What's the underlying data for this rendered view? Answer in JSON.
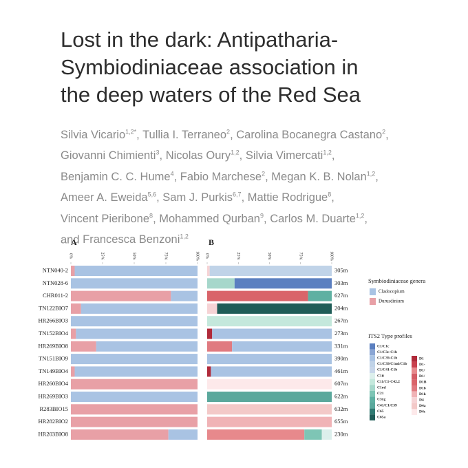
{
  "title": [
    "Lost in the dark: Antipatharia-",
    "Symbiodiniaceae association in",
    "the deep waters of the Red Sea"
  ],
  "authors": [
    {
      "name": "Silvia Vicario",
      "affiliation": "1,2*"
    },
    {
      "name": "Tullia I. Terraneo",
      "affiliation": "2"
    },
    {
      "name": "Carolina Bocanegra Castano",
      "affiliation": "2"
    },
    {
      "name": "Giovanni Chimienti",
      "affiliation": "3"
    },
    {
      "name": "Nicolas Oury",
      "affiliation": "1,2"
    },
    {
      "name": "Silvia Vimercati",
      "affiliation": "1,2"
    },
    {
      "name": "Benjamin C. C. Hume",
      "affiliation": "4"
    },
    {
      "name": "Fabio Marchese",
      "affiliation": "2"
    },
    {
      "name": "Megan K. B. Nolan",
      "affiliation": "1,2"
    },
    {
      "name": "Ameer A. Eweida",
      "affiliation": "5,6"
    },
    {
      "name": "Sam J. Purkis",
      "affiliation": "6,7"
    },
    {
      "name": "Mattie Rodrigue",
      "affiliation": "8"
    },
    {
      "name": "Vincent Pieribone",
      "affiliation": "8"
    },
    {
      "name": "Mohammed Qurban",
      "affiliation": "9"
    },
    {
      "name": "Carlos M. Duarte",
      "affiliation": "1,2"
    },
    {
      "name": "Francesca Benzoni",
      "affiliation": "1,2"
    }
  ],
  "author_separator": ",",
  "author_conjunction": "and",
  "chart_data": [
    {
      "type": "stacked-bar",
      "panel": "A",
      "orientation": "horizontal",
      "categories": [
        "NTN040-2",
        "NTN028-6",
        "CHR011-2",
        "TN122BIO7",
        "HR266BIO3",
        "TN152BIO4",
        "HR269BIO8",
        "TN151BIO9",
        "TN149BIO4",
        "HR260BIO4",
        "HR269BIO3",
        "R283BIO15",
        "HR282BIO2",
        "HR203BIO8"
      ],
      "xlim": [
        0,
        100
      ],
      "xticks": [
        {
          "value": 0,
          "label": "0%"
        },
        {
          "value": 25,
          "label": "25%"
        },
        {
          "value": 50,
          "label": "50%"
        },
        {
          "value": 75,
          "label": "75%"
        },
        {
          "value": 100,
          "label": "100%"
        }
      ],
      "legend_title": "Symbiodiniaceae genera",
      "series": [
        {
          "name": "Durusdinium",
          "color": "#e8a0a6",
          "values": [
            3,
            0,
            79,
            8,
            0,
            4,
            20,
            0,
            3,
            100,
            0,
            100,
            100,
            77
          ]
        },
        {
          "name": "Cladocopium",
          "color": "#a9c3e3",
          "values": [
            97,
            100,
            21,
            92,
            100,
            96,
            80,
            100,
            97,
            0,
            100,
            0,
            0,
            23
          ]
        }
      ]
    },
    {
      "type": "stacked-bar",
      "panel": "B",
      "orientation": "horizontal",
      "categories": [
        null,
        null,
        null,
        null,
        null,
        null,
        null,
        null,
        null,
        null,
        null,
        null,
        null,
        null
      ],
      "depth_labels": [
        "305m",
        "303m",
        "627m",
        "204m",
        "267m",
        "273m",
        "331m",
        "390m",
        "461m",
        "607m",
        "622m",
        "632m",
        "655m",
        "230m"
      ],
      "xlim": [
        0,
        100
      ],
      "xticks": [
        {
          "value": 0,
          "label": "0%"
        },
        {
          "value": 25,
          "label": "25%"
        },
        {
          "value": 50,
          "label": "50%"
        },
        {
          "value": 75,
          "label": "75%"
        },
        {
          "value": 100,
          "label": "100%"
        }
      ],
      "legend_title": "ITS2 Type profiles",
      "series": [
        {
          "name": "D1",
          "color": "#b02a3a",
          "values": [
            null,
            null,
            null,
            null,
            null,
            4,
            null,
            null,
            3,
            null,
            null,
            null,
            null,
            null
          ]
        },
        {
          "name": "D1-",
          "color": "#c8404d",
          "values": [
            null,
            null,
            null,
            null,
            null,
            null,
            null,
            null,
            null,
            null,
            null,
            null,
            null,
            null
          ]
        },
        {
          "name": "D1/",
          "color": "#e7898c",
          "values": [
            null,
            null,
            null,
            null,
            null,
            null,
            null,
            null,
            null,
            null,
            null,
            null,
            null,
            78
          ]
        },
        {
          "name": "D1/",
          "color": "#d45d66",
          "values": [
            null,
            null,
            null,
            null,
            null,
            null,
            null,
            null,
            null,
            null,
            null,
            null,
            null,
            null
          ]
        },
        {
          "name": "D1B",
          "color": "#d9646a",
          "values": [
            null,
            null,
            81,
            null,
            null,
            null,
            null,
            null,
            null,
            null,
            null,
            null,
            null,
            null
          ]
        },
        {
          "name": "D1b",
          "color": "#e07a80",
          "values": [
            null,
            null,
            null,
            null,
            null,
            null,
            20,
            null,
            null,
            null,
            null,
            null,
            null,
            null
          ]
        },
        {
          "name": "D1k",
          "color": "#f0b3b6",
          "values": [
            null,
            null,
            null,
            null,
            null,
            null,
            null,
            null,
            null,
            null,
            null,
            null,
            100,
            null
          ]
        },
        {
          "name": "D4",
          "color": "#f6d3d5",
          "values": [
            2,
            null,
            null,
            8,
            null,
            null,
            null,
            null,
            null,
            null,
            null,
            null,
            null,
            null
          ]
        },
        {
          "name": "D4a",
          "color": "#f3c9c8",
          "values": [
            null,
            null,
            null,
            null,
            null,
            null,
            null,
            null,
            null,
            null,
            null,
            100,
            null,
            null
          ]
        },
        {
          "name": "D4c",
          "color": "#fde9ea",
          "values": [
            null,
            null,
            null,
            null,
            null,
            null,
            null,
            null,
            null,
            100,
            null,
            null,
            null,
            null
          ]
        },
        {
          "name": "C65a",
          "color": "#1f5c57",
          "values": [
            null,
            null,
            null,
            92,
            null,
            null,
            null,
            null,
            null,
            null,
            null,
            null,
            null,
            null
          ]
        },
        {
          "name": "C65",
          "color": "#2f7a72",
          "values": [
            null,
            null,
            null,
            null,
            null,
            null,
            null,
            null,
            null,
            null,
            null,
            null,
            null,
            null
          ]
        },
        {
          "name": "C41/C1/C39",
          "color": "#5aa89c",
          "values": [
            null,
            null,
            null,
            null,
            null,
            null,
            null,
            null,
            null,
            null,
            100,
            null,
            null,
            null
          ]
        },
        {
          "name": "C3yg",
          "color": "#5fb0a2",
          "values": [
            null,
            null,
            19,
            null,
            null,
            null,
            null,
            null,
            null,
            null,
            null,
            null,
            null,
            null
          ]
        },
        {
          "name": "C21",
          "color": "#7ec5b5",
          "values": [
            null,
            null,
            null,
            null,
            null,
            null,
            null,
            null,
            null,
            null,
            null,
            null,
            null,
            14
          ]
        },
        {
          "name": "C1od",
          "color": "#a6d7cb",
          "values": [
            null,
            22,
            null,
            null,
            null,
            null,
            null,
            null,
            null,
            null,
            null,
            null,
            null,
            null
          ]
        },
        {
          "name": "C11/C1-C42.2",
          "color": "#c4e8dc",
          "values": [
            null,
            null,
            null,
            null,
            100,
            null,
            null,
            null,
            null,
            null,
            null,
            null,
            null,
            null
          ]
        },
        {
          "name": "C1ii",
          "color": "#dcefec",
          "values": [
            null,
            null,
            null,
            null,
            null,
            null,
            null,
            null,
            null,
            null,
            null,
            null,
            null,
            8
          ]
        },
        {
          "name": "C1/C41-C1b",
          "color": "#c7d6ea",
          "values": [
            null,
            null,
            null,
            null,
            null,
            null,
            null,
            null,
            null,
            null,
            null,
            null,
            null,
            null
          ]
        },
        {
          "name": "C1/C39/C1nd/C1b",
          "color": "#c0d3e8",
          "values": [
            98,
            null,
            null,
            null,
            null,
            null,
            null,
            null,
            null,
            null,
            null,
            null,
            null,
            null
          ]
        },
        {
          "name": "C1/C39-C1b",
          "color": "#a9c3e3",
          "values": [
            null,
            null,
            null,
            null,
            null,
            96,
            80,
            100,
            97,
            null,
            null,
            null,
            null,
            null
          ]
        },
        {
          "name": "C1/C3c-C1b",
          "color": "#8aa6d4",
          "values": [
            null,
            null,
            null,
            null,
            null,
            null,
            null,
            null,
            null,
            null,
            null,
            null,
            null,
            null
          ]
        },
        {
          "name": "C1/C1c",
          "color": "#5b7fc0",
          "values": [
            null,
            78,
            null,
            null,
            null,
            null,
            null,
            null,
            null,
            null,
            null,
            null,
            null,
            null
          ]
        }
      ]
    }
  ]
}
